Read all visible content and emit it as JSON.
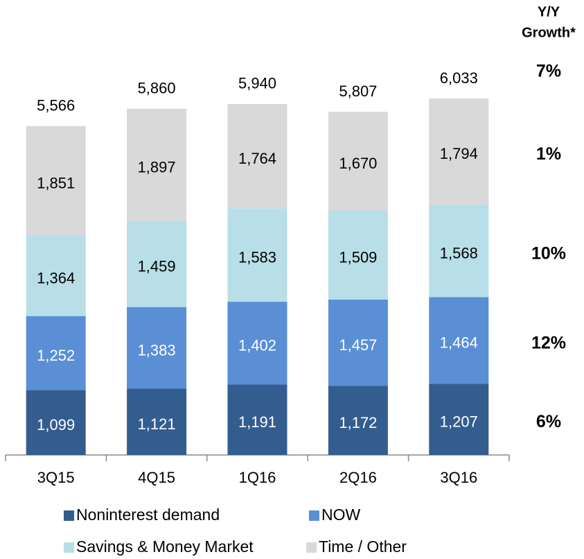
{
  "chart_data": {
    "type": "stacked_bar",
    "categories": [
      "3Q15",
      "4Q15",
      "1Q16",
      "2Q16",
      "3Q16"
    ],
    "series": [
      {
        "name": "Noninterest demand",
        "color": "#345d8f",
        "label_color": "#ffffff",
        "values": [
          1099,
          1121,
          1191,
          1172,
          1207
        ],
        "value_labels": [
          "1,099",
          "1,121",
          "1,191",
          "1,172",
          "1,207"
        ]
      },
      {
        "name": "NOW",
        "color": "#5a8fd6",
        "label_color": "#ffffff",
        "values": [
          1252,
          1383,
          1402,
          1457,
          1464
        ],
        "value_labels": [
          "1,252",
          "1,383",
          "1,402",
          "1,457",
          "1,464"
        ]
      },
      {
        "name": "Savings & Money Market",
        "color": "#b8dee7",
        "label_color": "#000000",
        "values": [
          1364,
          1459,
          1583,
          1509,
          1568
        ],
        "value_labels": [
          "1,364",
          "1,459",
          "1,583",
          "1,509",
          "1,568"
        ]
      },
      {
        "name": "Time / Other",
        "color": "#d9d9d9",
        "label_color": "#000000",
        "values": [
          1851,
          1897,
          1764,
          1670,
          1794
        ],
        "value_labels": [
          "1,851",
          "1,897",
          "1,764",
          "1,670",
          "1,794"
        ]
      }
    ],
    "totals": {
      "values": [
        5566,
        5860,
        5940,
        5807,
        6033
      ],
      "value_labels": [
        "5,566",
        "5,860",
        "5,940",
        "5,807",
        "6,033"
      ]
    },
    "growth": {
      "title_lines": [
        "Y/Y",
        "Growth*"
      ],
      "values": [
        6,
        12,
        10,
        1,
        7
      ],
      "value_labels": [
        "6%",
        "12%",
        "10%",
        "1%",
        "7%"
      ]
    },
    "legend": "bottom"
  }
}
